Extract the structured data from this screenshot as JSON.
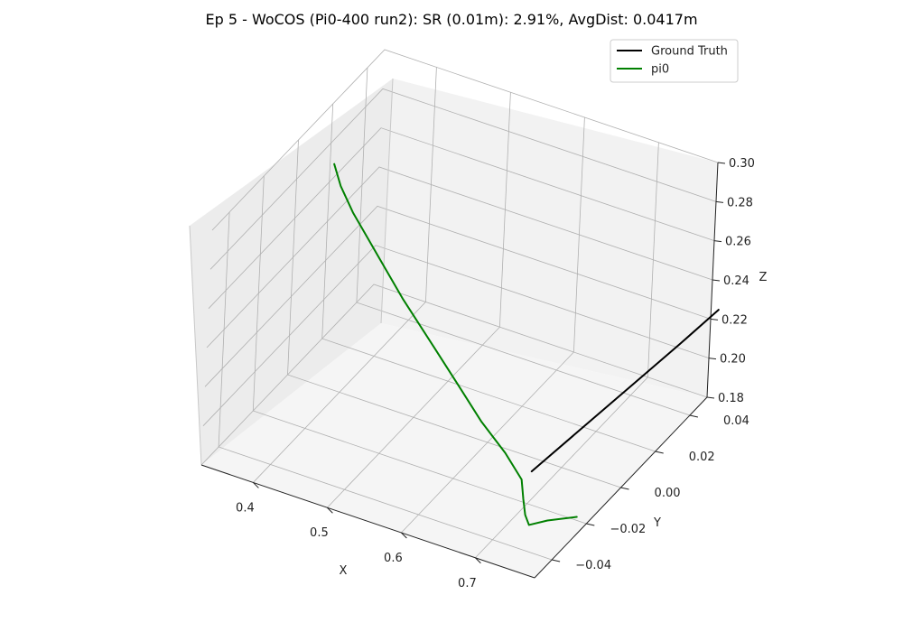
{
  "chart_data": {
    "type": "line",
    "title": "Ep 5 - WoCOS (Pi0-400 run2): SR (0.01m): 2.91%, AvgDist: 0.0417m",
    "xlabel": "X",
    "ylabel": "Y",
    "zlabel": "Z",
    "grid": true,
    "legend_position": "top-right",
    "x_ticks": [
      "0.4",
      "0.5",
      "0.6",
      "0.7"
    ],
    "y_ticks": [
      "0.04",
      "0.02",
      "0.00",
      "−0.02",
      "−0.04"
    ],
    "z_ticks": [
      "0.30",
      "0.28",
      "0.26",
      "0.24",
      "0.22",
      "0.20",
      "0.18"
    ],
    "series": [
      {
        "name": "Ground Truth",
        "color": "#000000",
        "points": [
          {
            "x": 0.715,
            "y": -0.025,
            "z": 0.203
          },
          {
            "x": 0.735,
            "y": -0.005,
            "z": 0.209
          },
          {
            "x": 0.755,
            "y": 0.015,
            "z": 0.215
          },
          {
            "x": 0.775,
            "y": 0.035,
            "z": 0.221
          },
          {
            "x": 0.79,
            "y": 0.05,
            "z": 0.226
          }
        ]
      },
      {
        "name": "pi0",
        "color": "#008000",
        "points": [
          {
            "x": 0.39,
            "y": -0.005,
            "z": 0.3
          },
          {
            "x": 0.4,
            "y": -0.005,
            "z": 0.29
          },
          {
            "x": 0.42,
            "y": -0.006,
            "z": 0.28
          },
          {
            "x": 0.46,
            "y": -0.008,
            "z": 0.265
          },
          {
            "x": 0.5,
            "y": -0.01,
            "z": 0.25
          },
          {
            "x": 0.55,
            "y": -0.013,
            "z": 0.235
          },
          {
            "x": 0.59,
            "y": -0.015,
            "z": 0.222
          },
          {
            "x": 0.63,
            "y": -0.018,
            "z": 0.211
          },
          {
            "x": 0.67,
            "y": -0.021,
            "z": 0.203
          },
          {
            "x": 0.7,
            "y": -0.024,
            "z": 0.196
          },
          {
            "x": 0.71,
            "y": -0.027,
            "z": 0.19
          },
          {
            "x": 0.72,
            "y": -0.03,
            "z": 0.186
          },
          {
            "x": 0.73,
            "y": -0.032,
            "z": 0.184
          },
          {
            "x": 0.75,
            "y": -0.03,
            "z": 0.187
          },
          {
            "x": 0.78,
            "y": -0.026,
            "z": 0.189
          }
        ]
      }
    ]
  }
}
